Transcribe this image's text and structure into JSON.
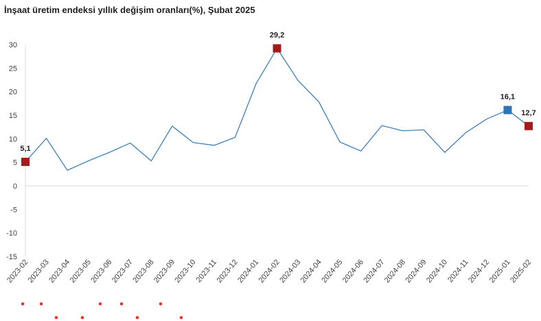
{
  "chart_data": {
    "type": "line",
    "title": "İnşaat üretim endeksi yıllık değişim oranları(%), Şubat 2025",
    "xlabel": "",
    "ylabel": "",
    "ylim": [
      -15,
      30
    ],
    "yticks": [
      -15,
      -10,
      -5,
      0,
      5,
      10,
      15,
      20,
      25,
      30
    ],
    "ytick_labels": [
      "-15",
      "-10",
      "-5",
      "0",
      "5",
      "10",
      "15",
      "20",
      "25",
      "30"
    ],
    "grid": false,
    "categories": [
      "2023-02",
      "2023-03",
      "2023-04",
      "2023-05",
      "2023-06",
      "2023-07",
      "2023-08",
      "2023-09",
      "2023-10",
      "2023-11",
      "2023-12",
      "2024-01",
      "2024-02",
      "2024-03",
      "2024-04",
      "2024-05",
      "2024-06",
      "2024-07",
      "2024-08",
      "2024-09",
      "2024-10",
      "2024-11",
      "2024-12",
      "2025-01",
      "2025-02"
    ],
    "series": [
      {
        "values": [
          5.1,
          10.1,
          3.3,
          5.3,
          7.1,
          9.1,
          5.3,
          12.7,
          9.2,
          8.6,
          10.3,
          21.7,
          29.2,
          22.4,
          17.8,
          9.3,
          7.4,
          12.8,
          11.7,
          11.9,
          7.1,
          11.3,
          14.2,
          16.1,
          12.7
        ],
        "color": "#2e75b6"
      }
    ],
    "markers": [
      {
        "index": 0,
        "label": "5,1",
        "color": "#a31c1c"
      },
      {
        "index": 12,
        "label": "29,2",
        "color": "#a31c1c"
      },
      {
        "index": 23,
        "label": "16,1",
        "color": "#2e75b6"
      },
      {
        "index": 24,
        "label": "12,7",
        "color": "#a31c1c"
      }
    ],
    "annotation_dot_color": "#e8352b"
  }
}
